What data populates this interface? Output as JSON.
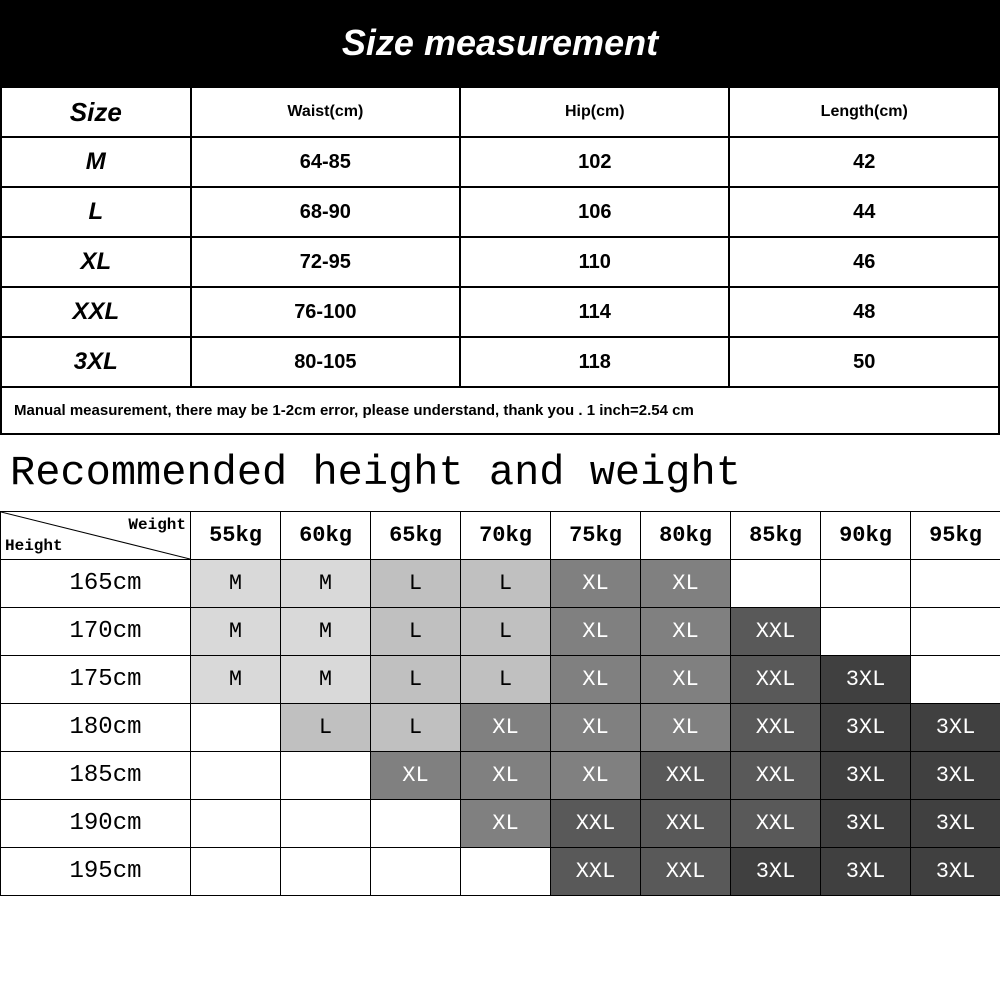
{
  "title1": "Size measurement",
  "sizeTable": {
    "columns": [
      "Size",
      "Waist(cm)",
      "Hip(cm)",
      "Length(cm)"
    ],
    "rows": [
      {
        "size": "M",
        "waist": "64-85",
        "hip": "102",
        "length": "42"
      },
      {
        "size": "L",
        "waist": "68-90",
        "hip": "106",
        "length": "44"
      },
      {
        "size": "XL",
        "waist": "72-95",
        "hip": "110",
        "length": "46"
      },
      {
        "size": "XXL",
        "waist": "76-100",
        "hip": "114",
        "length": "48"
      },
      {
        "size": "3XL",
        "waist": "80-105",
        "hip": "118",
        "length": "50"
      }
    ]
  },
  "note": "Manual measurement, there may be 1-2cm error, please understand, thank you .   1 inch=2.54 cm",
  "title2": "Recommended height and weight",
  "recTable": {
    "diagLabels": {
      "height": "Height",
      "weight": "Weight"
    },
    "weights": [
      "55kg",
      "60kg",
      "65kg",
      "70kg",
      "75kg",
      "80kg",
      "85kg",
      "90kg",
      "95kg"
    ],
    "heights": [
      "165cm",
      "170cm",
      "175cm",
      "180cm",
      "185cm",
      "190cm",
      "195cm"
    ],
    "cells": [
      [
        "M",
        "M",
        "L",
        "L",
        "XL",
        "XL",
        "",
        "",
        ""
      ],
      [
        "M",
        "M",
        "L",
        "L",
        "XL",
        "XL",
        "XXL",
        "",
        ""
      ],
      [
        "M",
        "M",
        "L",
        "L",
        "XL",
        "XL",
        "XXL",
        "3XL",
        ""
      ],
      [
        "",
        "L",
        "L",
        "XL",
        "XL",
        "XL",
        "XXL",
        "3XL",
        "3XL"
      ],
      [
        "",
        "",
        "XL",
        "XL",
        "XL",
        "XXL",
        "XXL",
        "3XL",
        "3XL"
      ],
      [
        "",
        "",
        "",
        "XL",
        "XXL",
        "XXL",
        "XXL",
        "3XL",
        "3XL"
      ],
      [
        "",
        "",
        "",
        "",
        "XXL",
        "XXL",
        "3XL",
        "3XL",
        "3XL"
      ]
    ],
    "shadeColors": {
      "M": "#d9d9d9",
      "L": "#c0c0c0",
      "XL": "#808080",
      "XXL": "#595959",
      "3XL": "#404040"
    },
    "textColors": {
      "M": "#000000",
      "L": "#000000",
      "XL": "#ffffff",
      "XXL": "#ffffff",
      "3XL": "#ffffff"
    },
    "colWidths": {
      "first": 190,
      "rest": 90
    }
  }
}
